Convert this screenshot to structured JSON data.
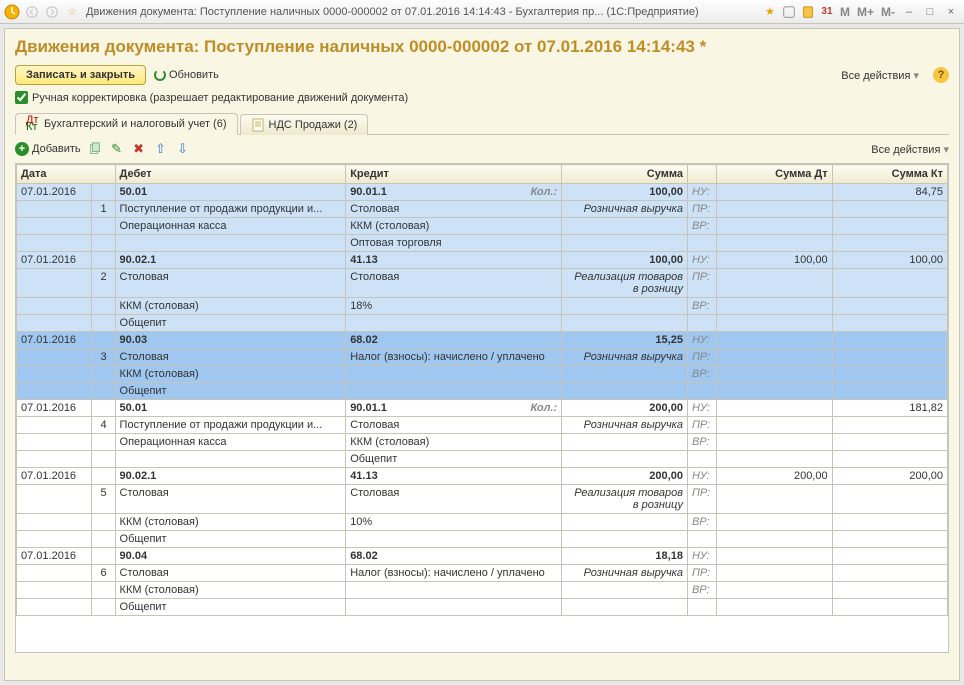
{
  "window": {
    "title": "Движения документа: Поступление наличных 0000-000002 от 07.01.2016 14:14:43 - Бухгалтерия пр...   (1С:Предприятие)"
  },
  "page": {
    "heading": "Движения документа: Поступление наличных 0000-000002 от 07.01.2016 14:14:43 *"
  },
  "toolbar": {
    "write_close": "Записать и закрыть",
    "refresh": "Обновить",
    "all_actions": "Все действия"
  },
  "checkbox": {
    "label": "Ручная корректировка (разрешает редактирование движений документа)"
  },
  "tabs": [
    {
      "label": "Бухгалтерский и налоговый учет (6)",
      "active": true
    },
    {
      "label": "НДС Продажи (2)",
      "active": false
    }
  ],
  "toolbar2": {
    "add": "Добавить",
    "all_actions": "Все действия"
  },
  "columns": {
    "date": "Дата",
    "debit": "Дебет",
    "credit": "Кредит",
    "sum": "Сумма",
    "sum_dt": "Сумма Дт",
    "sum_kt": "Сумма Кт"
  },
  "tags": {
    "nu": "НУ:",
    "pr": "ПР:",
    "vr": "ВР:"
  },
  "rows": [
    {
      "idx": 1,
      "date": "07.01.2016",
      "selected": false,
      "shade": "blue",
      "debit": [
        "50.01",
        "Поступление от продажи продукции и...",
        "Операционная касса"
      ],
      "credit": [
        "90.01.1",
        "Столовая",
        "ККМ (столовая)",
        "Оптовая торговля"
      ],
      "credit_kol": true,
      "sum": "100,00",
      "sum_note": "Розничная выручка",
      "dt": "",
      "kt": "84,75"
    },
    {
      "idx": 2,
      "date": "07.01.2016",
      "selected": false,
      "shade": "blue",
      "debit": [
        "90.02.1",
        "Столовая",
        "ККМ (столовая)",
        "Общепит"
      ],
      "credit": [
        "41.13",
        "Столовая",
        "18%"
      ],
      "sum": "100,00",
      "sum_note": "Реализация товаров в розницу",
      "dt": "100,00",
      "kt": "100,00"
    },
    {
      "idx": 3,
      "date": "07.01.2016",
      "selected": true,
      "shade": "blue",
      "debit": [
        "90.03",
        "Столовая",
        "ККМ (столовая)",
        "Общепит"
      ],
      "credit": [
        "68.02",
        "Налог (взносы): начислено / уплачено"
      ],
      "sum": "15,25",
      "sum_note": "Розничная выручка",
      "dt": "",
      "kt": ""
    },
    {
      "idx": 4,
      "date": "07.01.2016",
      "selected": false,
      "shade": "",
      "debit": [
        "50.01",
        "Поступление от продажи продукции и...",
        "Операционная касса"
      ],
      "credit": [
        "90.01.1",
        "Столовая",
        "ККМ (столовая)",
        "Общепит"
      ],
      "credit_kol": true,
      "sum": "200,00",
      "sum_note": "Розничная выручка",
      "dt": "",
      "kt": "181,82"
    },
    {
      "idx": 5,
      "date": "07.01.2016",
      "selected": false,
      "shade": "",
      "debit": [
        "90.02.1",
        "Столовая",
        "ККМ (столовая)",
        "Общепит"
      ],
      "credit": [
        "41.13",
        "Столовая",
        "10%"
      ],
      "sum": "200,00",
      "sum_note": "Реализация товаров в розницу",
      "dt": "200,00",
      "kt": "200,00"
    },
    {
      "idx": 6,
      "date": "07.01.2016",
      "selected": false,
      "shade": "",
      "debit": [
        "90.04",
        "Столовая",
        "ККМ (столовая)",
        "Общепит"
      ],
      "credit": [
        "68.02",
        "Налог (взносы): начислено / уплачено"
      ],
      "sum": "18,18",
      "sum_note": "Розничная выручка",
      "dt": "",
      "kt": ""
    }
  ],
  "colors": {
    "accent": "#bf8d26",
    "panel": "#faf6e4",
    "row_blue": "#cde2f7",
    "row_sel": "#9fc7ef"
  }
}
